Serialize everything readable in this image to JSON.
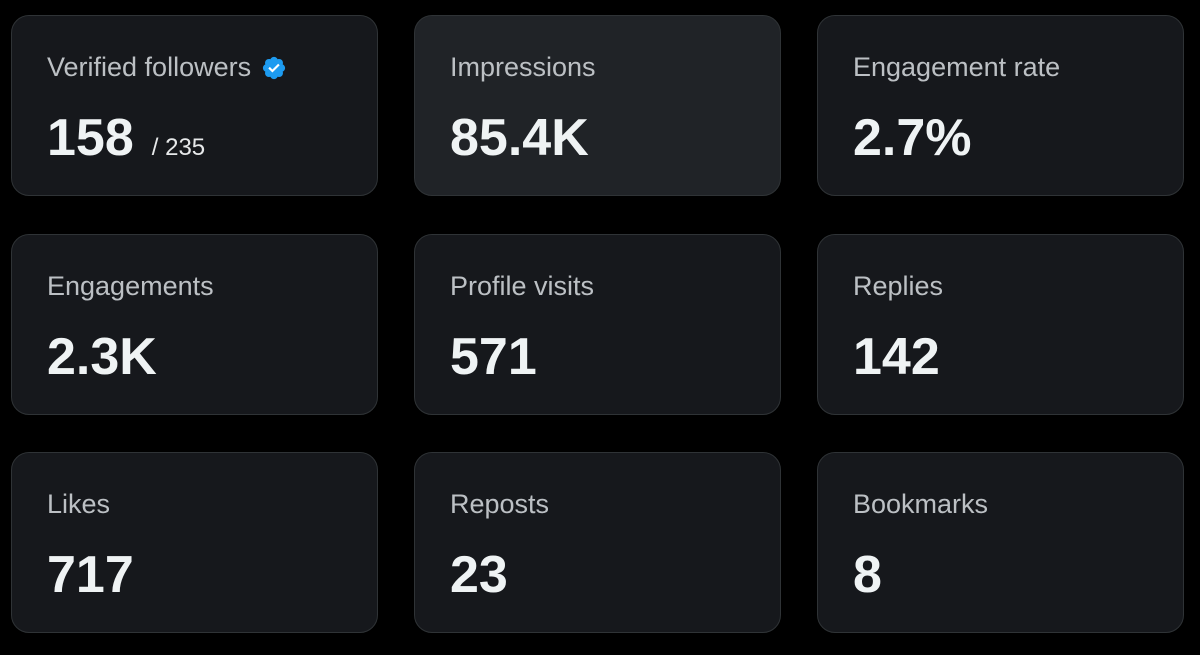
{
  "colors": {
    "background": "#000000",
    "card": "#16181c",
    "card_hover": "#202327",
    "border": "#2f3336",
    "label": "#bcc0c4",
    "value": "#eff3f4",
    "verified_badge": "#1d9bf0"
  },
  "metrics": {
    "verified_followers": {
      "label": "Verified followers",
      "value": "158",
      "total": "/ 235",
      "icon": "verified-badge-icon"
    },
    "impressions": {
      "label": "Impressions",
      "value": "85.4K"
    },
    "engagement_rate": {
      "label": "Engagement rate",
      "value": "2.7%"
    },
    "engagements": {
      "label": "Engagements",
      "value": "2.3K"
    },
    "profile_visits": {
      "label": "Profile visits",
      "value": "571"
    },
    "replies": {
      "label": "Replies",
      "value": "142"
    },
    "likes": {
      "label": "Likes",
      "value": "717"
    },
    "reposts": {
      "label": "Reposts",
      "value": "23"
    },
    "bookmarks": {
      "label": "Bookmarks",
      "value": "8"
    }
  }
}
